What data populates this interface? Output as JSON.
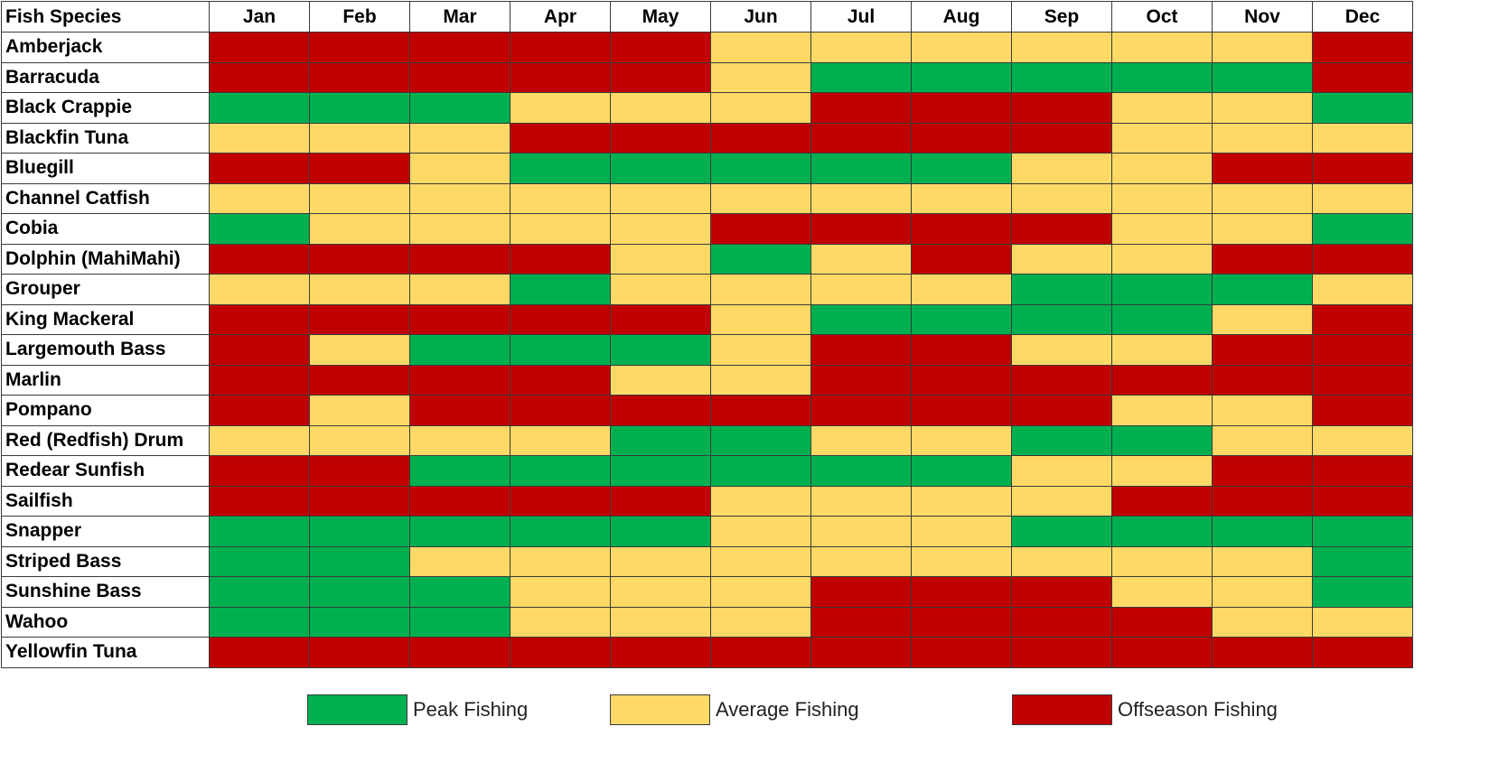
{
  "chart_data": {
    "type": "heatmap",
    "corner_label": "Fish Species",
    "months": [
      "Jan",
      "Feb",
      "Mar",
      "Apr",
      "May",
      "Jun",
      "Jul",
      "Aug",
      "Sep",
      "Oct",
      "Nov",
      "Dec"
    ],
    "legend": [
      {
        "key": "P",
        "label": "Peak Fishing",
        "color": "#00b050"
      },
      {
        "key": "A",
        "label": "Average Fishing",
        "color": "#ffd966"
      },
      {
        "key": "O",
        "label": "Offseason Fishing",
        "color": "#c00000"
      }
    ],
    "rows": [
      {
        "species": "Amberjack",
        "months": [
          "O",
          "O",
          "O",
          "O",
          "O",
          "A",
          "A",
          "A",
          "A",
          "A",
          "A",
          "O"
        ]
      },
      {
        "species": "Barracuda",
        "months": [
          "O",
          "O",
          "O",
          "O",
          "O",
          "A",
          "P",
          "P",
          "P",
          "P",
          "P",
          "O"
        ]
      },
      {
        "species": "Black Crappie",
        "months": [
          "P",
          "P",
          "P",
          "A",
          "A",
          "A",
          "O",
          "O",
          "O",
          "A",
          "A",
          "P"
        ]
      },
      {
        "species": "Blackfin Tuna",
        "months": [
          "A",
          "A",
          "A",
          "O",
          "O",
          "O",
          "O",
          "O",
          "O",
          "A",
          "A",
          "A"
        ]
      },
      {
        "species": "Bluegill",
        "months": [
          "O",
          "O",
          "A",
          "P",
          "P",
          "P",
          "P",
          "P",
          "A",
          "A",
          "O",
          "O"
        ]
      },
      {
        "species": "Channel Catfish",
        "months": [
          "A",
          "A",
          "A",
          "A",
          "A",
          "A",
          "A",
          "A",
          "A",
          "A",
          "A",
          "A"
        ]
      },
      {
        "species": "Cobia",
        "months": [
          "P",
          "A",
          "A",
          "A",
          "A",
          "O",
          "O",
          "O",
          "O",
          "A",
          "A",
          "P"
        ]
      },
      {
        "species": "Dolphin (MahiMahi)",
        "months": [
          "O",
          "O",
          "O",
          "O",
          "A",
          "P",
          "A",
          "O",
          "A",
          "A",
          "O",
          "O"
        ]
      },
      {
        "species": "Grouper",
        "months": [
          "A",
          "A",
          "A",
          "P",
          "A",
          "A",
          "A",
          "A",
          "P",
          "P",
          "P",
          "A"
        ]
      },
      {
        "species": "King Mackeral",
        "months": [
          "O",
          "O",
          "O",
          "O",
          "O",
          "A",
          "P",
          "P",
          "P",
          "P",
          "A",
          "O"
        ]
      },
      {
        "species": "Largemouth Bass",
        "months": [
          "O",
          "A",
          "P",
          "P",
          "P",
          "A",
          "O",
          "O",
          "A",
          "A",
          "O",
          "O"
        ]
      },
      {
        "species": "Marlin",
        "months": [
          "O",
          "O",
          "O",
          "O",
          "A",
          "A",
          "O",
          "O",
          "O",
          "O",
          "O",
          "O"
        ]
      },
      {
        "species": "Pompano",
        "months": [
          "O",
          "A",
          "O",
          "O",
          "O",
          "O",
          "O",
          "O",
          "O",
          "A",
          "A",
          "O"
        ]
      },
      {
        "species": "Red (Redfish) Drum",
        "months": [
          "A",
          "A",
          "A",
          "A",
          "P",
          "P",
          "A",
          "A",
          "P",
          "P",
          "A",
          "A"
        ]
      },
      {
        "species": "Redear Sunfish",
        "months": [
          "O",
          "O",
          "P",
          "P",
          "P",
          "P",
          "P",
          "P",
          "A",
          "A",
          "O",
          "O"
        ]
      },
      {
        "species": "Sailfish",
        "months": [
          "O",
          "O",
          "O",
          "O",
          "O",
          "A",
          "A",
          "A",
          "A",
          "O",
          "O",
          "O"
        ]
      },
      {
        "species": "Snapper",
        "months": [
          "P",
          "P",
          "P",
          "P",
          "P",
          "A",
          "A",
          "A",
          "P",
          "P",
          "P",
          "P"
        ]
      },
      {
        "species": "Striped Bass",
        "months": [
          "P",
          "P",
          "A",
          "A",
          "A",
          "A",
          "A",
          "A",
          "A",
          "A",
          "A",
          "P"
        ]
      },
      {
        "species": "Sunshine Bass",
        "months": [
          "P",
          "P",
          "P",
          "A",
          "A",
          "A",
          "O",
          "O",
          "O",
          "A",
          "A",
          "P"
        ]
      },
      {
        "species": "Wahoo",
        "months": [
          "P",
          "P",
          "P",
          "A",
          "A",
          "A",
          "O",
          "O",
          "O",
          "O",
          "A",
          "A"
        ]
      },
      {
        "species": "Yellowfin Tuna",
        "months": [
          "O",
          "O",
          "O",
          "O",
          "O",
          "O",
          "O",
          "O",
          "O",
          "O",
          "O",
          "O"
        ]
      }
    ]
  }
}
